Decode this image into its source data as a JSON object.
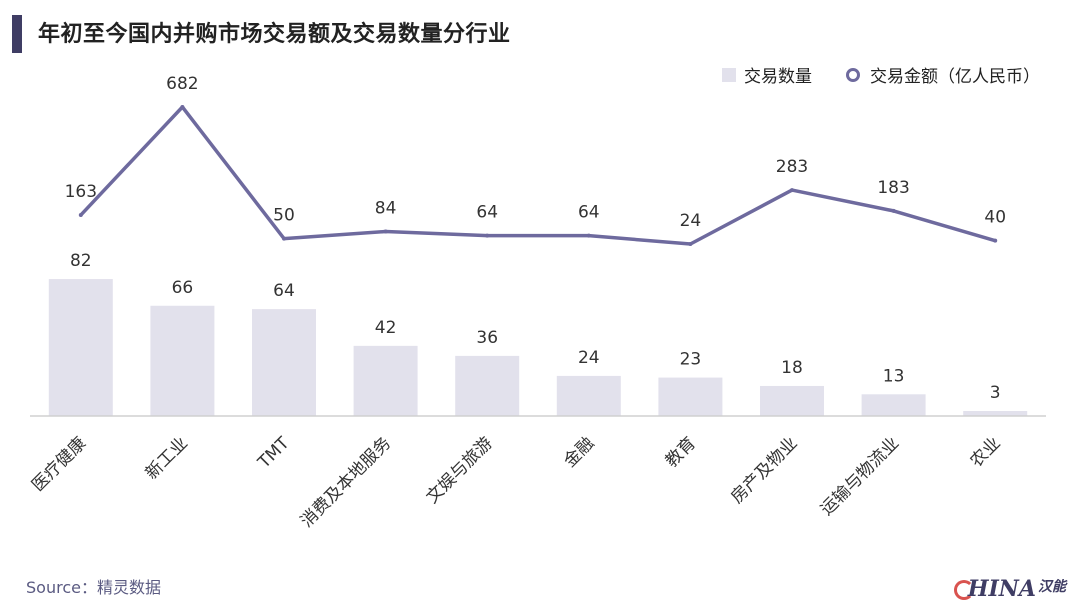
{
  "title": "年初至今国内并购市场交易额及交易数量分行业",
  "legend": {
    "bar_label": "交易数量",
    "line_label": "交易金额（亿人民币）"
  },
  "source": "Source：精灵数据",
  "logo": {
    "text": "HINA",
    "cn": "汉能"
  },
  "colors": {
    "bar": "#e2e1ec",
    "line": "#6e6a9e",
    "axis": "#d0d0d0",
    "title_accent": "#3f3d64"
  },
  "chart_data": {
    "type": "bar",
    "categories": [
      "医疗健康",
      "新工业",
      "TMT",
      "消费及本地服务",
      "文娱与旅游",
      "金融",
      "教育",
      "房产及物业",
      "运输与物流业",
      "农业"
    ],
    "series": [
      {
        "name": "交易数量",
        "type": "bar",
        "values": [
          82,
          66,
          64,
          42,
          36,
          24,
          23,
          18,
          13,
          3
        ]
      },
      {
        "name": "交易金额（亿人民币）",
        "type": "line",
        "values": [
          163,
          682,
          50,
          84,
          64,
          64,
          24,
          283,
          183,
          40
        ]
      }
    ],
    "data_labels": true,
    "grid": false,
    "legend_position": "top-right"
  }
}
